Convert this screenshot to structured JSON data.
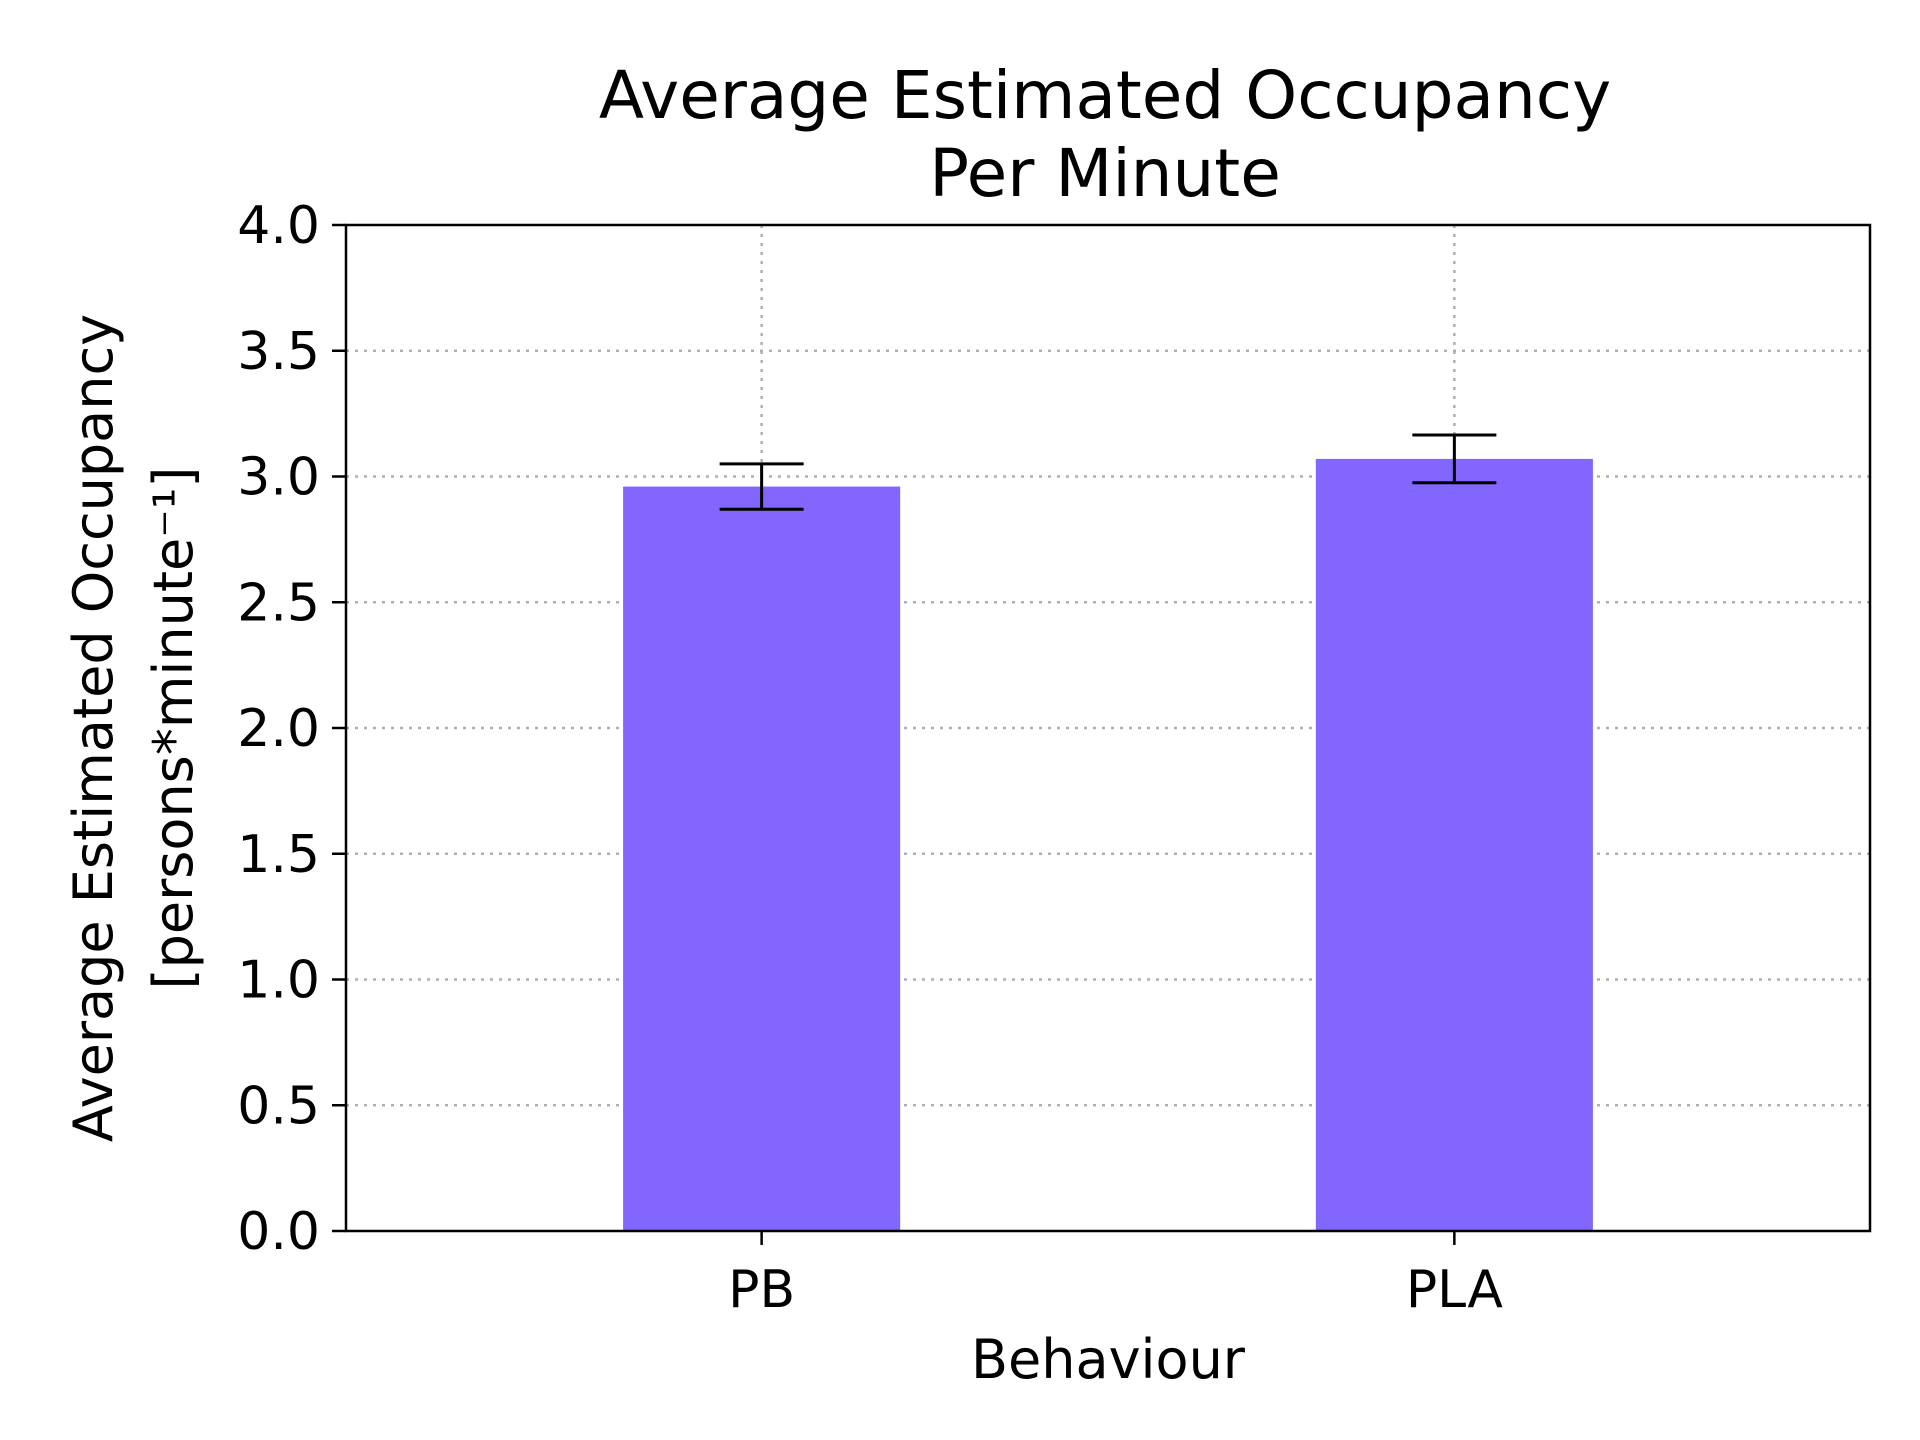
{
  "chart_data": {
    "type": "bar",
    "title": "Average Estimated Occupancy\nPer Minute",
    "title_lines": [
      "Average Estimated Occupancy",
      "Per Minute"
    ],
    "xlabel": "Behaviour",
    "ylabel_lines": [
      "Average Estimated Occupancy",
      "[persons*minute⁻¹]"
    ],
    "categories": [
      "PB",
      "PLA"
    ],
    "values": [
      2.96,
      3.07
    ],
    "errors": [
      0.09,
      0.095
    ],
    "ylim": [
      0,
      4.0
    ],
    "yticks": [
      0.0,
      0.5,
      1.0,
      1.5,
      2.0,
      2.5,
      3.0,
      3.5,
      4.0
    ],
    "ytick_labels": [
      "0.0",
      "0.5",
      "1.0",
      "1.5",
      "2.0",
      "2.5",
      "3.0",
      "3.5",
      "4.0"
    ],
    "grid": true,
    "bar_color": "#8366fd",
    "error_color": "#000000"
  }
}
